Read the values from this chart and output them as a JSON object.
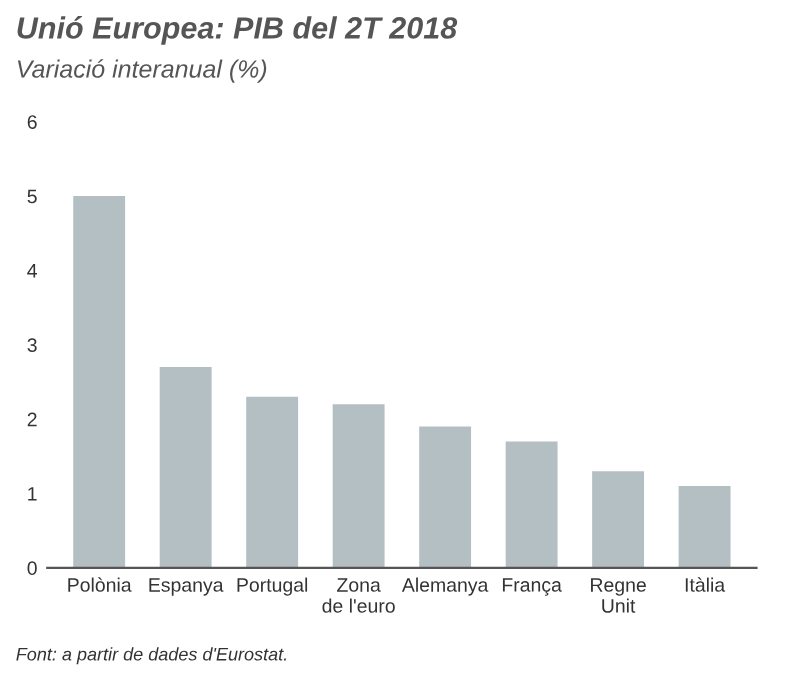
{
  "chart_data": {
    "type": "bar",
    "title": "Unió Europea: PIB del 2T 2018",
    "subtitle": "Variació interanual (%)",
    "categories": [
      "Polònia",
      "Espanya",
      "Portugal",
      "Zona\nde l'euro",
      "Alemanya",
      "França",
      "Regne\nUnit",
      "Itàlia"
    ],
    "values": [
      5.0,
      2.7,
      2.3,
      2.2,
      1.9,
      1.7,
      1.3,
      1.1
    ],
    "color": "#b4bfc3",
    "ylim": [
      0,
      6
    ],
    "yticks": [
      0,
      1,
      2,
      3,
      4,
      5,
      6
    ],
    "grid": false,
    "annotations": [
      "Font: a partir de dades d'Eurostat."
    ]
  }
}
